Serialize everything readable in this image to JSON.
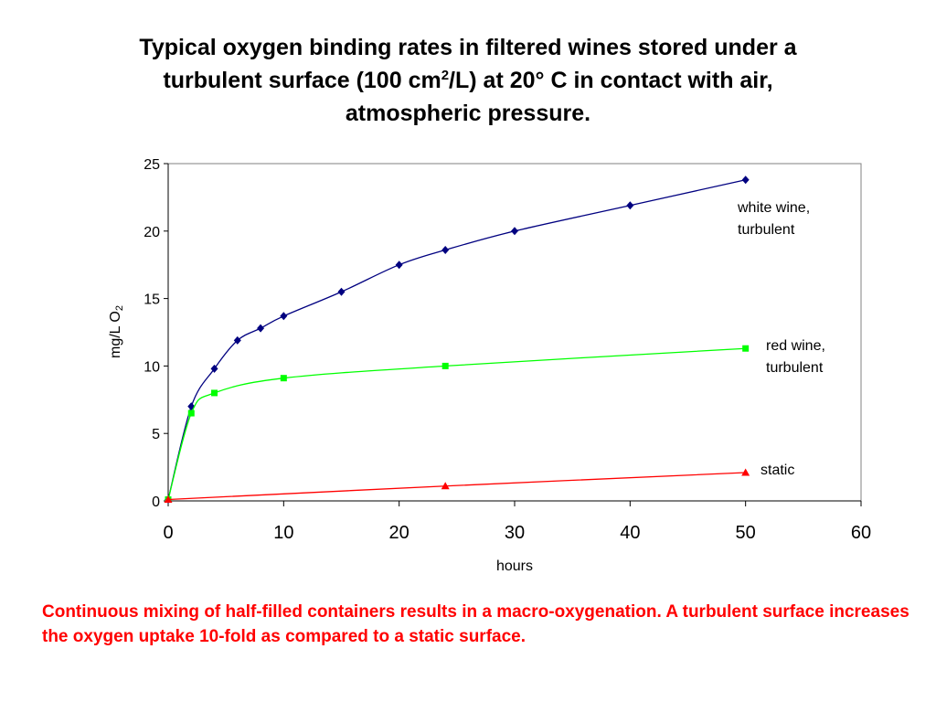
{
  "slide": {
    "title_line1": "Typical oxygen binding rates in filtered wines stored under a",
    "title_line2_pre": "turbulent surface (100 cm",
    "title_line2_sup": "2",
    "title_line2_post": "/L) at 20° C in contact with air,",
    "title_line3": "atmospheric pressure.",
    "caption": "Continuous mixing of half-filled containers results in a macro-oxygenation. A turbulent surface increases the oxygen uptake 10-fold as compared to a static surface."
  },
  "chart_data": {
    "type": "line",
    "xlabel": "hours",
    "ylabel_main": "mg/L O",
    "ylabel_sub": "2",
    "xlim": [
      0,
      60
    ],
    "ylim": [
      0,
      25
    ],
    "xticks": [
      "0",
      "10",
      "20",
      "30",
      "40",
      "50",
      "60"
    ],
    "yticks": [
      "0",
      "5",
      "10",
      "15",
      "20",
      "25"
    ],
    "grid": false,
    "series": [
      {
        "label_line1": "white wine,",
        "label_line2": "turbulent",
        "color": "#000080",
        "marker": "diamond",
        "x": [
          0,
          2,
          4,
          6,
          8,
          10,
          15,
          20,
          24,
          30,
          40,
          50
        ],
        "y": [
          0.1,
          7.0,
          9.8,
          11.9,
          12.8,
          13.7,
          15.5,
          17.5,
          18.6,
          20.0,
          21.9,
          23.8
        ]
      },
      {
        "label_line1": "red wine,",
        "label_line2": "turbulent",
        "color": "#00ff00",
        "marker": "square",
        "x": [
          0,
          2,
          4,
          10,
          24,
          50
        ],
        "y": [
          0.1,
          6.5,
          8.0,
          9.1,
          10.0,
          11.3
        ]
      },
      {
        "label_line1": "static",
        "label_line2": "",
        "color": "#ff0000",
        "marker": "triangle",
        "x": [
          0,
          24,
          50
        ],
        "y": [
          0.1,
          1.1,
          2.1
        ]
      }
    ]
  }
}
